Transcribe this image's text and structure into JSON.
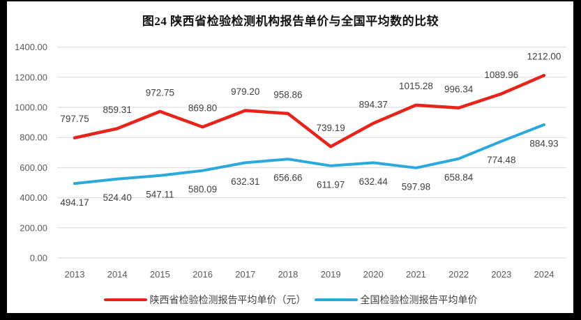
{
  "chart": {
    "title": "图24 陕西省检验检测机构报告单价与全国平均数的比较"
  },
  "chart_data": {
    "type": "line",
    "title": "图24 陕西省检验检测机构报告单价与全国平均数的比较",
    "categories": [
      "2013",
      "2014",
      "2015",
      "2016",
      "2017",
      "2018",
      "2019",
      "2020",
      "2021",
      "2022",
      "2023",
      "2024"
    ],
    "series": [
      {
        "name": "陕西省检验检测报告平均单价（元）",
        "color": "#e8231a",
        "label_position": "above",
        "values": [
          797.75,
          859.31,
          972.75,
          869.8,
          979.2,
          958.86,
          739.19,
          894.37,
          1015.28,
          996.34,
          1089.96,
          1212.0
        ]
      },
      {
        "name": "全国检验检测报告平均单价",
        "color": "#29a9dc",
        "label_position": "below",
        "values": [
          494.17,
          524.4,
          547.11,
          580.09,
          632.31,
          656.66,
          611.97,
          632.44,
          597.98,
          658.84,
          774.48,
          884.93
        ]
      }
    ],
    "xlabel": "",
    "ylabel": "",
    "ylim": [
      0,
      1400
    ],
    "ytick_step": 200,
    "ytick_labels": [
      "0.00",
      "200.00",
      "400.00",
      "600.00",
      "800.00",
      "1000.00",
      "1200.00",
      "1400.00"
    ],
    "grid": true,
    "legend_position": "bottom",
    "value_decimals": 2,
    "colors": {
      "gridline": "#d9d9d9",
      "axis_label": "#595959",
      "data_label": "#3f3f3f",
      "title": "#111111",
      "background": "#ffffff",
      "frame": "#000000"
    }
  }
}
